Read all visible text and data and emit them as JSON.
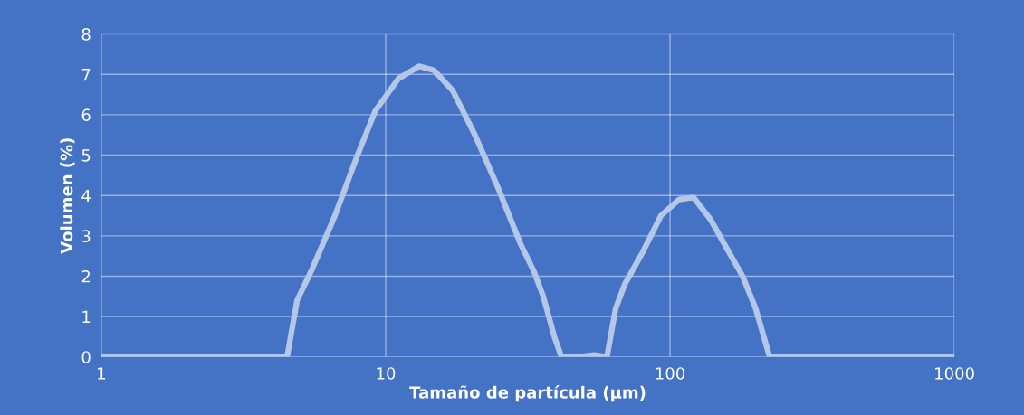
{
  "chart_data": {
    "type": "line",
    "xlabel": "Tamaño de partícula (µm)",
    "ylabel": "Volumen (%)",
    "log": "x",
    "xlim": [
      1,
      1000
    ],
    "xticks": [
      1,
      10,
      100,
      1000
    ],
    "ylim": [
      0,
      8
    ],
    "yticks": [
      0,
      1,
      2,
      3,
      4,
      5,
      6,
      7,
      8
    ],
    "grid": true,
    "marker": "none",
    "line_style": "solid",
    "legend": false,
    "series": [
      {
        "color": "#b4c7e7",
        "x": [
          1,
          3.83,
          4.27,
          4.5,
          4.88,
          5.53,
          6.63,
          7.96,
          9.2,
          11.1,
          13.1,
          14.8,
          17.2,
          20.6,
          24.8,
          29.8,
          33.3,
          35.8,
          39.2,
          41.5,
          47,
          54.2,
          60,
          64.4,
          69.3,
          80.2,
          92.9,
          107.6,
          121,
          139,
          161,
          180,
          200,
          224,
          240,
          1000
        ],
        "values": [
          0,
          0,
          0,
          0,
          1.4,
          2.2,
          3.5,
          5.0,
          6.1,
          6.9,
          7.2,
          7.1,
          6.6,
          5.5,
          4.2,
          2.8,
          2.1,
          1.5,
          0.5,
          0,
          0,
          0.05,
          0,
          1.2,
          1.8,
          2.6,
          3.5,
          3.9,
          3.95,
          3.4,
          2.6,
          2.0,
          1.2,
          0,
          0,
          0
        ]
      }
    ]
  }
}
